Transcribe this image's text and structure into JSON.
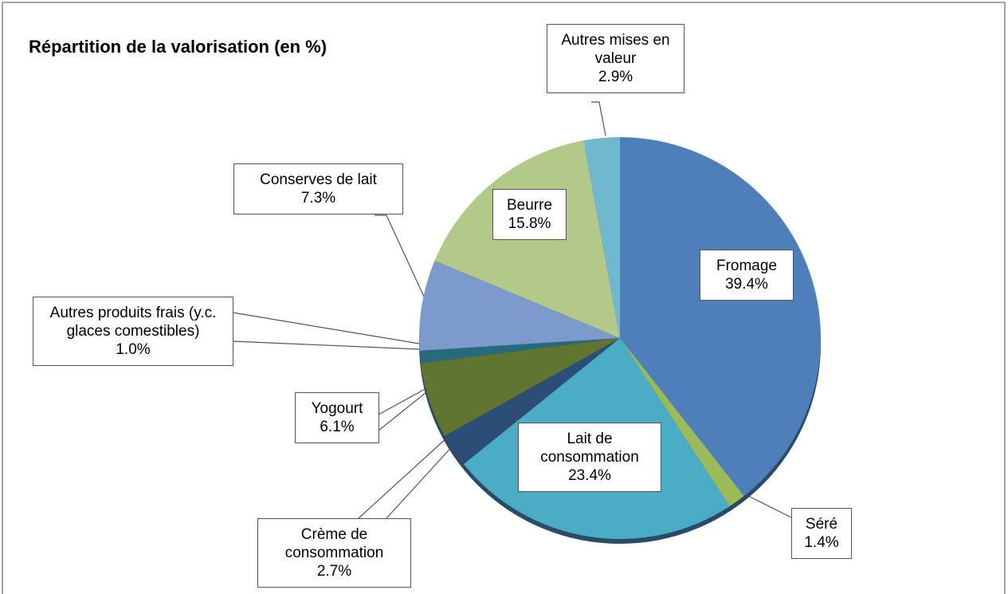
{
  "chart_data": {
    "type": "pie",
    "title": "Répartition de la valorisation (en %)",
    "categories": [
      "Fromage",
      "Séré",
      "Lait de consommation",
      "Crème de consommation",
      "Yogourt",
      "Autres produits frais (y.c. glaces comestibles)",
      "Conserves de lait",
      "Beurre",
      "Autres mises en valeur"
    ],
    "values": [
      39.4,
      1.4,
      23.4,
      2.7,
      6.1,
      1.0,
      7.3,
      15.8,
      2.9
    ],
    "value_labels": [
      "39.4%",
      "1.4%",
      "23.4%",
      "2.7%",
      "6.1%",
      "1.0%",
      "7.3%",
      "15.8%",
      "2.9%"
    ],
    "colors": [
      "#4f7fba",
      "#9bbb59",
      "#4bacc6",
      "#2c4d75",
      "#5f7530",
      "#276a7c",
      "#7c9bcc",
      "#b3c98a",
      "#70b8cd"
    ]
  }
}
